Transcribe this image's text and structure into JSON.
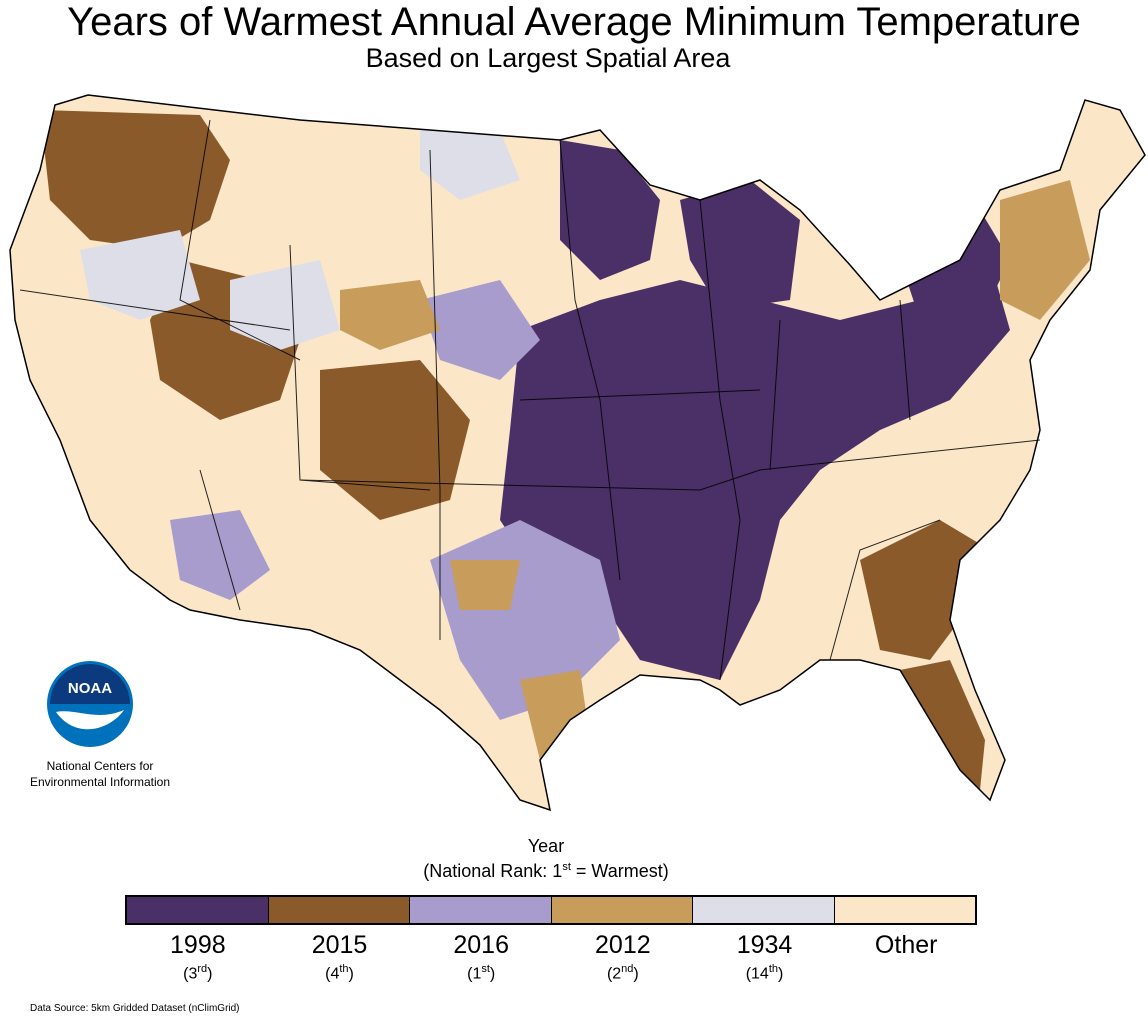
{
  "title": "Years of Warmest Annual Average Minimum Temperature",
  "subtitle": "Based on Largest Spatial Area",
  "logo": {
    "text": "NOAA",
    "colors": {
      "outer": "#0072bc",
      "inner": "#0b3a7e",
      "bird": "#ffffff"
    }
  },
  "organization": {
    "line1": "National Centers for",
    "line2": "Environmental Information"
  },
  "legend": {
    "title": "Year",
    "subtitle_prefix": "(National Rank: 1",
    "subtitle_sup": "st",
    "subtitle_suffix": " = Warmest)",
    "items": [
      {
        "year": "1998",
        "rank_num": "3",
        "rank_sup": "rd",
        "color": "#4a3066"
      },
      {
        "year": "2015",
        "rank_num": "4",
        "rank_sup": "th",
        "color": "#8b5a2b"
      },
      {
        "year": "2016",
        "rank_num": "1",
        "rank_sup": "st",
        "color": "#a79ccb"
      },
      {
        "year": "2012",
        "rank_num": "2",
        "rank_sup": "nd",
        "color": "#c89c5a"
      },
      {
        "year": "1934",
        "rank_num": "14",
        "rank_sup": "th",
        "color": "#dedee9"
      },
      {
        "year": "Other",
        "rank_num": "",
        "rank_sup": "",
        "color": "#fbe6c8"
      }
    ]
  },
  "source": "Data Source: 5km Gridded Dataset (nClimGrid)"
}
